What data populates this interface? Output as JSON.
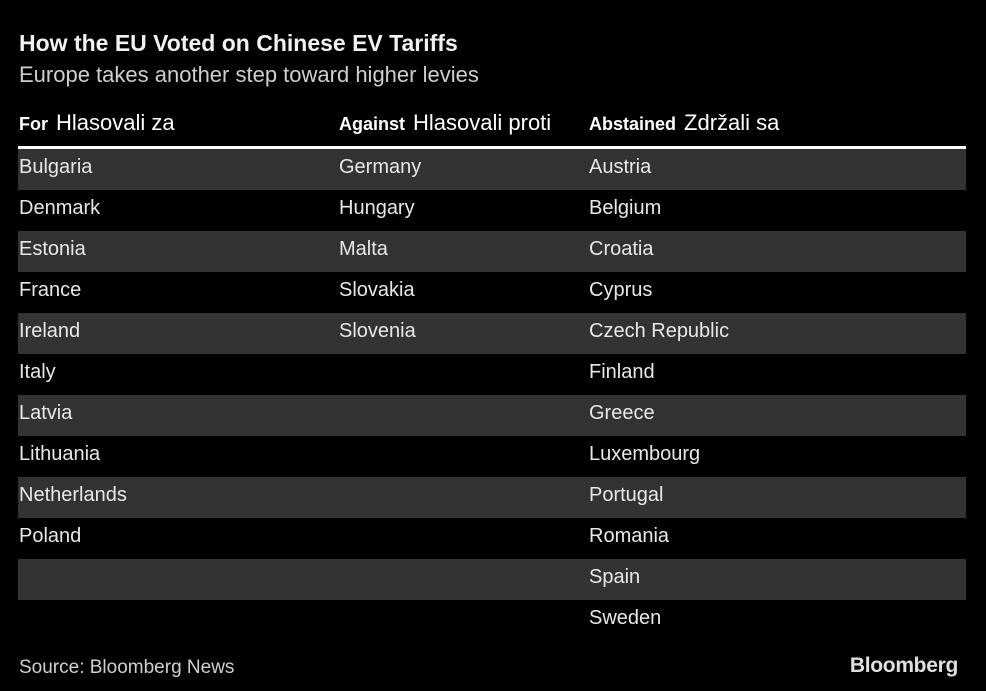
{
  "title": "How the EU Voted on Chinese EV Tariffs",
  "subtitle": "Europe takes another step toward higher levies",
  "source": "Source: Bloomberg News",
  "logo": "Bloomberg",
  "colors": {
    "background": "#000000",
    "band": "#333333",
    "rule": "#ffffff"
  },
  "chart_data": {
    "type": "table",
    "columns": [
      {
        "label": "For",
        "translation": "Hlasovali za"
      },
      {
        "label": "Against",
        "translation": "Hlasovali proti"
      },
      {
        "label": "Abstained",
        "translation": "Zdržali sa"
      }
    ],
    "rows": [
      [
        "Bulgaria",
        "Germany",
        "Austria"
      ],
      [
        "Denmark",
        "Hungary",
        "Belgium"
      ],
      [
        "Estonia",
        "Malta",
        "Croatia"
      ],
      [
        "France",
        "Slovakia",
        "Cyprus"
      ],
      [
        "Ireland",
        "Slovenia",
        "Czech Republic"
      ],
      [
        "Italy",
        "",
        "Finland"
      ],
      [
        "Latvia",
        "",
        "Greece"
      ],
      [
        "Lithuania",
        "",
        "Luxembourg"
      ],
      [
        "Netherlands",
        "",
        "Portugal"
      ],
      [
        "Poland",
        "",
        "Romania"
      ],
      [
        "",
        "",
        "Spain"
      ],
      [
        "",
        "",
        "Sweden"
      ]
    ]
  }
}
